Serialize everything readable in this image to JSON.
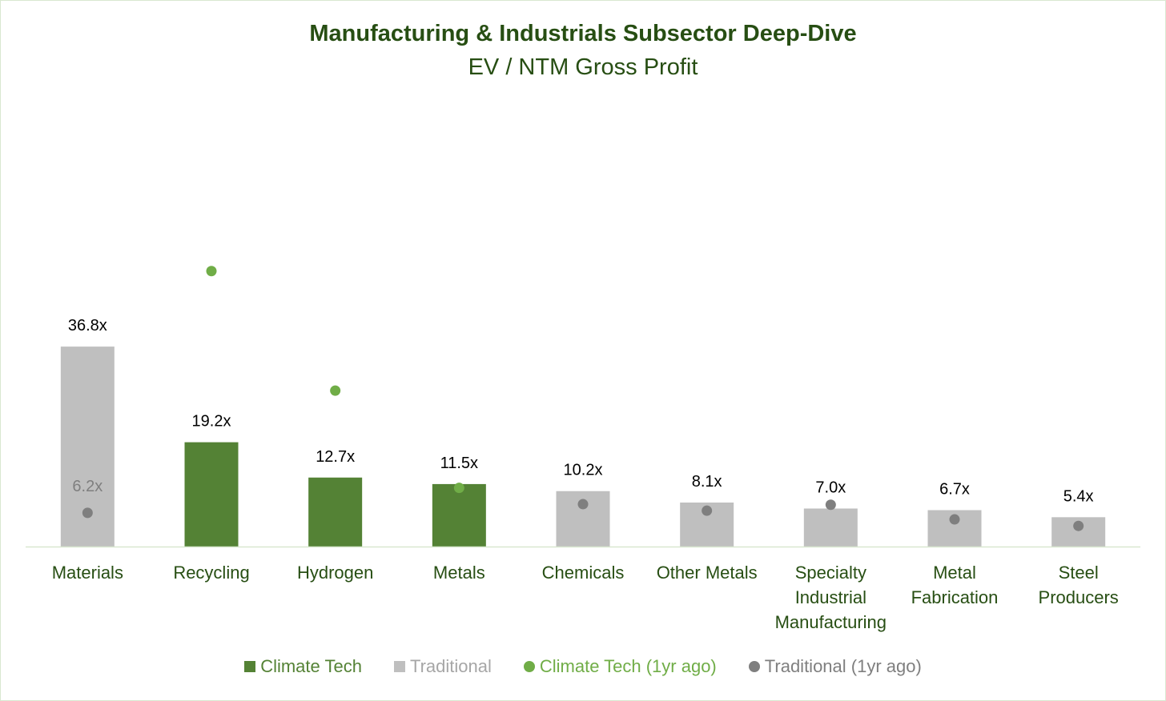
{
  "title": "Manufacturing & Industrials Subsector Deep-Dive",
  "subtitle": "EV / NTM Gross Profit",
  "colors": {
    "climate": "#548235",
    "traditional": "#bfbfbf",
    "climate_prev": "#70ad47",
    "traditional_prev": "#7f7f7f",
    "axis_text": "#274e13"
  },
  "chart_data": {
    "type": "bar",
    "title": "Manufacturing & Industrials Subsector Deep-Dive",
    "subtitle": "EV / NTM Gross Profit",
    "categories": [
      "Materials",
      "Recycling",
      "Hydrogen",
      "Metals",
      "Chemicals",
      "Other Metals",
      "Specialty Industrial Manufacturing",
      "Metal Fabrication",
      "Steel Producers"
    ],
    "category_lines": [
      [
        "Materials"
      ],
      [
        "Recycling"
      ],
      [
        "Hydrogen"
      ],
      [
        "Metals"
      ],
      [
        "Chemicals"
      ],
      [
        "Other Metals"
      ],
      [
        "Specialty",
        "Industrial",
        "Manufacturing"
      ],
      [
        "Metal",
        "Fabrication"
      ],
      [
        "Steel",
        "Producers"
      ]
    ],
    "values": [
      36.8,
      19.2,
      12.7,
      11.5,
      10.2,
      8.1,
      7.0,
      6.7,
      5.4
    ],
    "value_labels": [
      "36.8x",
      "19.2x",
      "12.7x",
      "11.5x",
      "10.2x",
      "8.1x",
      "7.0x",
      "6.7x",
      "5.4x"
    ],
    "bar_type": [
      "Traditional",
      "Climate Tech",
      "Climate Tech",
      "Climate Tech",
      "Traditional",
      "Traditional",
      "Traditional",
      "Traditional",
      "Traditional"
    ],
    "one_year_ago": [
      6.2,
      50.7,
      28.7,
      10.8,
      7.8,
      6.6,
      7.7,
      5.0,
      3.8
    ],
    "one_year_ago_labels": [
      "6.2x",
      null,
      null,
      null,
      null,
      null,
      null,
      null,
      null
    ],
    "ylim": [
      0,
      60
    ],
    "grid": false,
    "legend": {
      "placement": "bottom",
      "entries": [
        "Climate Tech",
        "Traditional",
        "Climate Tech (1yr ago)",
        "Traditional (1yr ago)"
      ]
    }
  }
}
